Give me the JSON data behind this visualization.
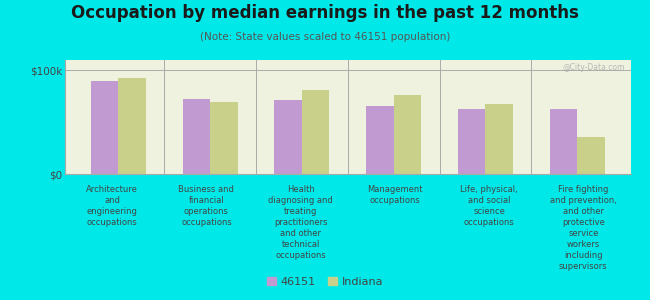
{
  "title": "Occupation by median earnings in the past 12 months",
  "subtitle": "(Note: State values scaled to 46151 population)",
  "background_color": "#00e8e8",
  "plot_bg_color": "#eef2df",
  "categories": [
    "Architecture\nand\nengineering\noccupations",
    "Business and\nfinancial\noperations\noccupations",
    "Health\ndiagnosing and\ntreating\npractitioners\nand other\ntechnical\noccupations",
    "Management\noccupations",
    "Life, physical,\nand social\nscience\noccupations",
    "Fire fighting\nand prevention,\nand other\nprotective\nservice\nworkers\nincluding\nsupervisors"
  ],
  "values_46151": [
    90000,
    72000,
    71000,
    66000,
    63000,
    63000
  ],
  "values_indiana": [
    93000,
    69000,
    81000,
    76000,
    68000,
    36000
  ],
  "color_46151": "#c09ad0",
  "color_indiana": "#c8d08a",
  "ylim": [
    0,
    110000
  ],
  "yticks": [
    0,
    100000
  ],
  "ytick_labels": [
    "$0",
    "$100k"
  ],
  "legend_labels": [
    "46151",
    "Indiana"
  ],
  "watermark": "@City-Data.com"
}
